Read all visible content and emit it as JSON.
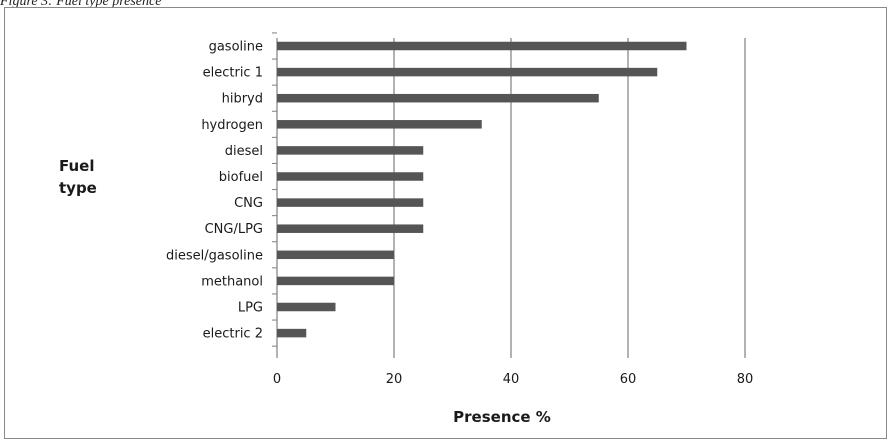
{
  "caption": "Figure 3: Fuel type presence",
  "chart_data": {
    "type": "bar",
    "orientation": "horizontal",
    "title": "",
    "xlabel": "Presence %",
    "ylabel_lines": [
      "Fuel",
      "type"
    ],
    "categories": [
      "gasoline",
      "electric 1",
      "hibryd",
      "hydrogen",
      "diesel",
      "biofuel",
      "CNG",
      "CNG/LPG",
      "diesel/gasoline",
      "methanol",
      "LPG",
      "electric 2"
    ],
    "values": [
      70,
      65,
      55,
      35,
      25,
      25,
      25,
      25,
      20,
      20,
      10,
      5
    ],
    "xlim": [
      0,
      80
    ],
    "xticks": [
      0,
      20,
      40,
      60,
      80
    ],
    "grid": "vertical",
    "bar_color": "#555555",
    "grid_color": "#7f7f7f"
  }
}
